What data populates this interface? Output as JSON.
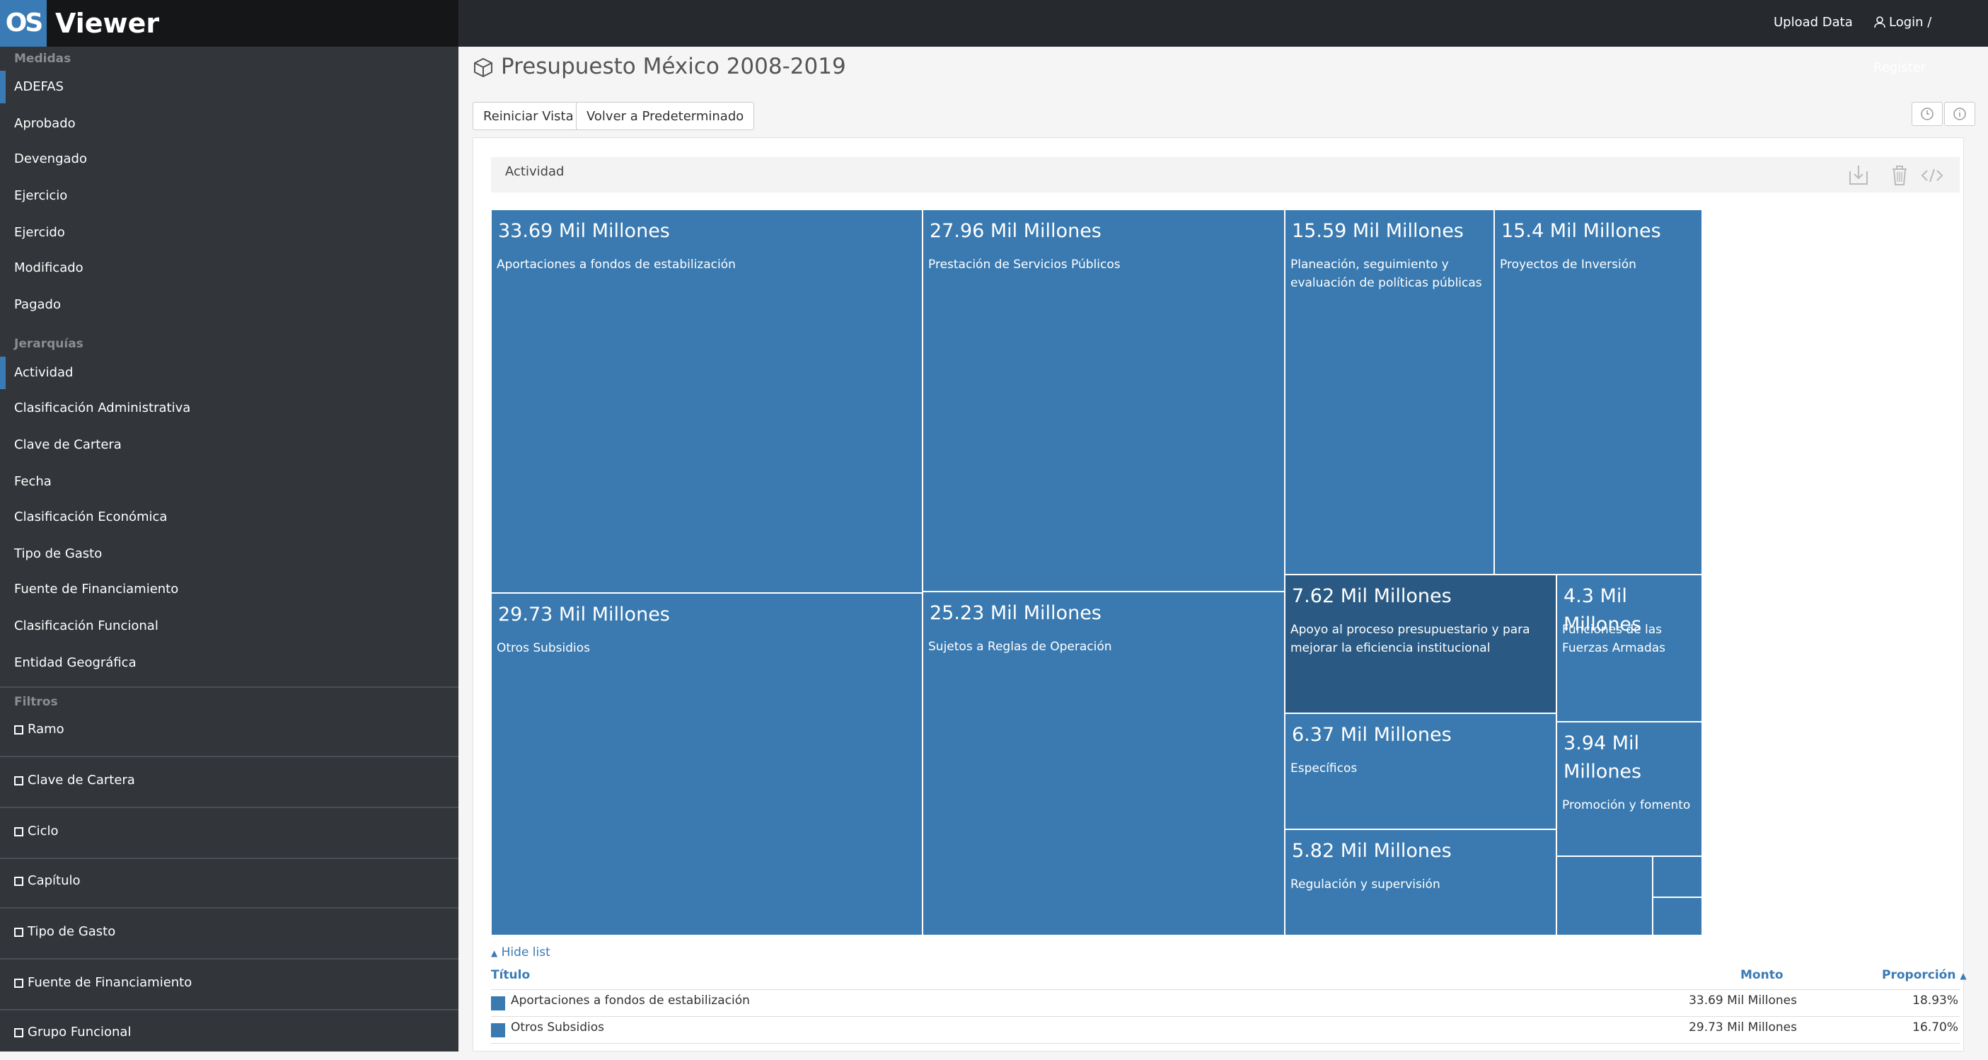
{
  "app": {
    "logo_mark": "OS",
    "name": "Viewer"
  },
  "topnav": {
    "upload": "Upload Data",
    "login": "Login / Register"
  },
  "sidebar": {
    "measures_title": "Medidas",
    "measures": [
      "ADEFAS",
      "Aprobado",
      "Devengado",
      "Ejercicio",
      "Ejercido",
      "Modificado",
      "Pagado"
    ],
    "hierarchies_title": "Jerarquías",
    "hierarchies": [
      "Actividad",
      "Clasificación Administrativa",
      "Clave de Cartera",
      "Fecha",
      "Clasificación Económica",
      "Tipo de Gasto",
      "Fuente de Financiamiento",
      "Clasificación Funcional",
      "Entidad Geográfica"
    ],
    "filters_title": "Filtros",
    "filters": [
      "Ramo",
      "Clave de Cartera",
      "Ciclo",
      "Capítulo",
      "Tipo de Gasto",
      "Fuente de Financiamiento",
      "Grupo Funcional"
    ]
  },
  "page": {
    "title": "Presupuesto México 2008-2019"
  },
  "toolbar": {
    "reset": "Reiniciar Vista",
    "default": "Volver a Predeterminado"
  },
  "panel": {
    "header": "Actividad"
  },
  "treemap": [
    {
      "amount": "33.69 Mil Millones",
      "label": "Aportaciones a fondos de estabilización"
    },
    {
      "amount": "27.96 Mil Millones",
      "label": "Prestación de Servicios Públicos"
    },
    {
      "amount": "15.59 Mil Millones",
      "label": "Planeación, seguimiento y evaluación de políticas públicas"
    },
    {
      "amount": "15.4 Mil Millones",
      "label": "Proyectos de Inversión"
    },
    {
      "amount": "29.73 Mil Millones",
      "label": "Otros Subsidios"
    },
    {
      "amount": "25.23 Mil Millones",
      "label": "Sujetos a Reglas de Operación"
    },
    {
      "amount": "7.62 Mil Millones",
      "label": "Apoyo al proceso presupuestario y para mejorar la eficiencia institucional"
    },
    {
      "amount": "4.3 Mil Millones",
      "label": "Funciones de las Fuerzas Armadas"
    },
    {
      "amount": "6.37 Mil Millones",
      "label": "Específicos"
    },
    {
      "amount": "3.94 Mil Millones",
      "label": "Promoción y fomento"
    },
    {
      "amount": "5.82 Mil Millones",
      "label": "Regulación y supervisión"
    },
    {
      "amount": "",
      "label": ""
    },
    {
      "amount": "",
      "label": ""
    },
    {
      "amount": "",
      "label": ""
    }
  ],
  "list": {
    "toggle": "Hide list",
    "col_title": "Título",
    "col_amount": "Monto",
    "col_share": "Proporción",
    "rows": [
      {
        "title": "Aportaciones a fondos de estabilización",
        "amount": "33.69 Mil Millones",
        "share": "18.93%"
      },
      {
        "title": "Otros Subsidios",
        "amount": "29.73 Mil Millones",
        "share": "16.70%"
      }
    ]
  },
  "colors": {
    "accent": "#3a7bb5",
    "tile": "#3a7ab0",
    "tile_highlight": "#2a5a84",
    "topbar": "#26292e",
    "sidebar": "#32353a"
  }
}
